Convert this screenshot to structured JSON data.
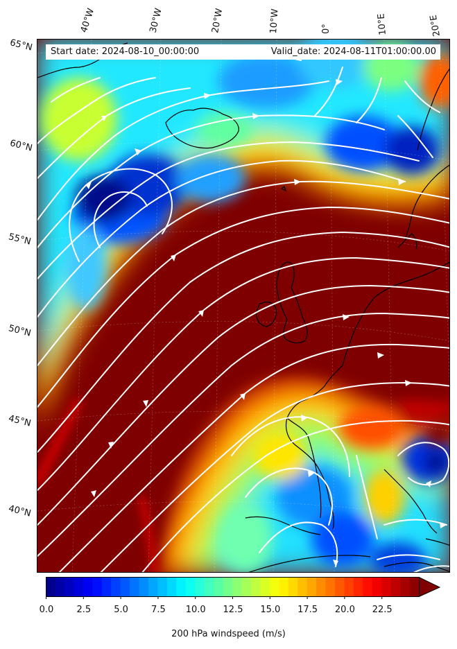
{
  "header": {
    "start_date": "Start date: 2024-08-10_00:00:00",
    "valid_date": "Valid_date: 2024-08-11T01:00:00.00"
  },
  "map": {
    "variable": "200 hPa windspeed",
    "longitude_labels": [
      "40°W",
      "30°W",
      "20°W",
      "10°W",
      "0°",
      "10°E",
      "20°E"
    ],
    "latitude_labels": [
      "65°N",
      "60°N",
      "55°N",
      "50°N",
      "45°N",
      "40°N"
    ],
    "colormap": "jet",
    "streamline_color": "#ffffff",
    "coastline_color": "#000000"
  },
  "colorbar": {
    "label": "200 hPa windspeed (m/s)",
    "min": 0.0,
    "max": 25.0,
    "extend": "max",
    "ticks": [
      "0.0",
      "2.5",
      "5.0",
      "7.5",
      "10.0",
      "12.5",
      "15.0",
      "17.5",
      "20.0",
      "22.5"
    ],
    "tick_values": [
      0,
      2.5,
      5,
      7.5,
      10,
      12.5,
      15,
      17.5,
      20,
      22.5
    ],
    "levels": 40
  }
}
